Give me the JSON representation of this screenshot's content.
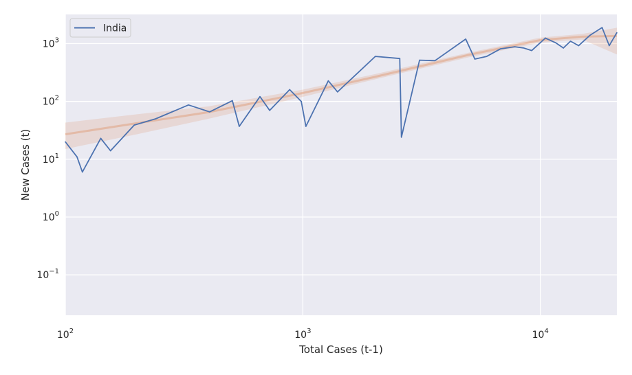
{
  "chart_data": {
    "type": "line",
    "title": "",
    "xlabel": "Total Cases (t-1)",
    "ylabel": "New Cases (t)",
    "xscale": "log",
    "yscale": "log",
    "xlim": [
      100,
      21000
    ],
    "ylim": [
      0.02,
      3200
    ],
    "grid": true,
    "legend_placement": "top-left",
    "x_ticks": [
      {
        "value": 100,
        "base": "10",
        "exp": "2"
      },
      {
        "value": 1000,
        "base": "10",
        "exp": "3"
      },
      {
        "value": 10000,
        "base": "10",
        "exp": "4"
      }
    ],
    "y_ticks": [
      {
        "value": 0.1,
        "base": "10",
        "exp": "−1"
      },
      {
        "value": 1,
        "base": "10",
        "exp": "0"
      },
      {
        "value": 10,
        "base": "10",
        "exp": "1"
      },
      {
        "value": 100,
        "base": "10",
        "exp": "2"
      },
      {
        "value": 1000,
        "base": "10",
        "exp": "3"
      }
    ],
    "series": [
      {
        "name": "India",
        "color": "#4c72b0",
        "x": [
          100,
          112,
          118,
          141,
          155,
          195,
          240,
          330,
          405,
          505,
          540,
          660,
          725,
          880,
          985,
          1030,
          1280,
          1400,
          2020,
          2560,
          2600,
          3100,
          3600,
          4850,
          5300,
          5950,
          6800,
          7800,
          8500,
          9200,
          10500,
          11600,
          12500,
          13400,
          14500,
          16200,
          18200,
          19500,
          21000
        ],
        "y": [
          20,
          11,
          6,
          23,
          14,
          39,
          50,
          87,
          66,
          103,
          37,
          121,
          70,
          160,
          100,
          37,
          227,
          146,
          601,
          553,
          24,
          518,
          508,
          1200,
          540,
          601,
          813,
          882,
          843,
          758,
          1250,
          1035,
          840,
          1100,
          925,
          1400,
          1900,
          925,
          1550
        ]
      }
    ],
    "trend": {
      "color": "#dd8452",
      "x": [
        100,
        200,
        400,
        1000,
        2000,
        5000,
        10000,
        15000,
        21000
      ],
      "y": [
        27,
        42,
        65,
        140,
        265,
        640,
        1150,
        1320,
        1360
      ],
      "band_lower": [
        15,
        27,
        50,
        120,
        240,
        580,
        1040,
        1180,
        650
      ],
      "band_upper": [
        43,
        60,
        82,
        160,
        295,
        700,
        1270,
        1470,
        1880
      ]
    }
  }
}
